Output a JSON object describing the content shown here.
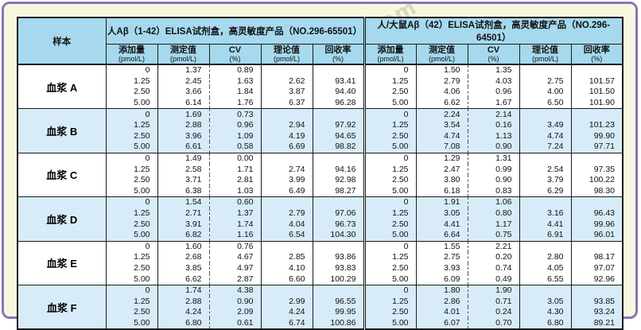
{
  "watermark": "chem17.com",
  "colors": {
    "frame_purple": "#8478B8",
    "page_cream": "#FAF7E1",
    "header_blue": "#A6D9EE",
    "shaded_row_blue": "#D7ECF8",
    "grid_black": "#1b1b1b"
  },
  "table": {
    "sample_header": "样本",
    "groups": [
      {
        "title": "人Aβ（1-42）ELISA试剂盒，高灵敏度产品（NO.296-65501）"
      },
      {
        "title": "人/大鼠Aβ（42）ELISA试剂盒，高灵敏度产品（NO.296-64501）"
      }
    ],
    "sub_headers": [
      {
        "label": "添加量",
        "unit": "(pmol/L)"
      },
      {
        "label": "测定值",
        "unit": "(pmol/L)"
      },
      {
        "label": "CV",
        "unit": "(%)"
      },
      {
        "label": "理论值",
        "unit": "(pmol/L)"
      },
      {
        "label": "回收率",
        "unit": "(%)"
      }
    ],
    "sections": [
      {
        "sample": "血浆 A",
        "shaded": false,
        "rows": [
          {
            "left": [
              "0",
              "1.37",
              "0.89",
              "",
              ""
            ],
            "right": [
              "0",
              "1.50",
              "1.35",
              "",
              ""
            ]
          },
          {
            "left": [
              "1.25",
              "2.45",
              "1.63",
              "2.62",
              "93.41"
            ],
            "right": [
              "1.25",
              "2.79",
              "4.03",
              "2.75",
              "101.57"
            ]
          },
          {
            "left": [
              "2.50",
              "3.66",
              "1.84",
              "3.87",
              "94.40"
            ],
            "right": [
              "2.50",
              "4.06",
              "0.96",
              "4.00",
              "101.50"
            ]
          },
          {
            "left": [
              "5.00",
              "6.14",
              "1.76",
              "6.37",
              "96.28"
            ],
            "right": [
              "5.00",
              "6.62",
              "1.67",
              "6.50",
              "101.90"
            ]
          }
        ]
      },
      {
        "sample": "血浆 B",
        "shaded": true,
        "rows": [
          {
            "left": [
              "0",
              "1.69",
              "0.73",
              "",
              ""
            ],
            "right": [
              "0",
              "2.24",
              "2.14",
              "",
              ""
            ]
          },
          {
            "left": [
              "1.25",
              "2.88",
              "0.96",
              "2.94",
              "97.92"
            ],
            "right": [
              "1.25",
              "3.54",
              "0.16",
              "3.49",
              "101.23"
            ]
          },
          {
            "left": [
              "2.50",
              "3.96",
              "1.09",
              "4.19",
              "94.65"
            ],
            "right": [
              "2.50",
              "4.74",
              "1.13",
              "4.74",
              "99.90"
            ]
          },
          {
            "left": [
              "5.00",
              "6.61",
              "0.58",
              "6.69",
              "98.82"
            ],
            "right": [
              "5.00",
              "7.08",
              "0.90",
              "7.24",
              "97.71"
            ]
          }
        ]
      },
      {
        "sample": "血浆 C",
        "shaded": false,
        "rows": [
          {
            "left": [
              "0",
              "1.49",
              "0.00",
              "",
              ""
            ],
            "right": [
              "0",
              "1.29",
              "1.31",
              "",
              ""
            ]
          },
          {
            "left": [
              "1.25",
              "2.58",
              "1.71",
              "2.74",
              "94.16"
            ],
            "right": [
              "1.25",
              "2.47",
              "0.99",
              "2.54",
              "97.35"
            ]
          },
          {
            "left": [
              "2.50",
              "3.71",
              "2.81",
              "3.99",
              "92.98"
            ],
            "right": [
              "2.50",
              "3.80",
              "0.90",
              "3.79",
              "100.22"
            ]
          },
          {
            "left": [
              "5.00",
              "6.38",
              "1.03",
              "6.49",
              "98.27"
            ],
            "right": [
              "5.00",
              "6.18",
              "0.83",
              "6.29",
              "98.30"
            ]
          }
        ]
      },
      {
        "sample": "血浆 D",
        "shaded": true,
        "rows": [
          {
            "left": [
              "0",
              "1.54",
              "0.60",
              "",
              ""
            ],
            "right": [
              "0",
              "1.91",
              "1.06",
              "",
              ""
            ]
          },
          {
            "left": [
              "1.25",
              "2.71",
              "1.37",
              "2.79",
              "97.06"
            ],
            "right": [
              "1.25",
              "3.05",
              "0.80",
              "3.16",
              "96.43"
            ]
          },
          {
            "left": [
              "2.50",
              "3.91",
              "1.74",
              "4.04",
              "96.73"
            ],
            "right": [
              "2.50",
              "4.41",
              "1.17",
              "4.41",
              "99.96"
            ]
          },
          {
            "left": [
              "5.00",
              "6.82",
              "1.16",
              "6.54",
              "104.30"
            ],
            "right": [
              "5.00",
              "6.64",
              "0.75",
              "6.91",
              "96.01"
            ]
          }
        ]
      },
      {
        "sample": "血浆 E",
        "shaded": false,
        "rows": [
          {
            "left": [
              "0",
              "1.60",
              "0.76",
              "",
              ""
            ],
            "right": [
              "0",
              "1.55",
              "2.21",
              "",
              ""
            ]
          },
          {
            "left": [
              "1.25",
              "2.68",
              "4.67",
              "2.85",
              "93.86"
            ],
            "right": [
              "1.25",
              "2.75",
              "0.20",
              "2.80",
              "98.17"
            ]
          },
          {
            "left": [
              "2.50",
              "3.85",
              "4.97",
              "4.10",
              "93.83"
            ],
            "right": [
              "2.50",
              "3.93",
              "0.74",
              "4.05",
              "97.07"
            ]
          },
          {
            "left": [
              "5.00",
              "6.62",
              "2.87",
              "6.60",
              "100.29"
            ],
            "right": [
              "5.00",
              "6.09",
              "0.49",
              "6.55",
              "92.96"
            ]
          }
        ]
      },
      {
        "sample": "血浆 F",
        "shaded": true,
        "rows": [
          {
            "left": [
              "0",
              "1.74",
              "4.38",
              "",
              ""
            ],
            "right": [
              "0",
              "1.80",
              "1.90",
              "",
              ""
            ]
          },
          {
            "left": [
              "1.25",
              "2.88",
              "0.90",
              "2.99",
              "96.55"
            ],
            "right": [
              "1.25",
              "2.86",
              "0.71",
              "3.05",
              "93.85"
            ]
          },
          {
            "left": [
              "2.50",
              "4.24",
              "2.09",
              "4.24",
              "99.95"
            ],
            "right": [
              "2.50",
              "4.01",
              "0.24",
              "4.30",
              "93.24"
            ]
          },
          {
            "left": [
              "5.00",
              "6.80",
              "0.61",
              "6.74",
              "100.86"
            ],
            "right": [
              "5.00",
              "6.07",
              "0.70",
              "6.80",
              "89.21"
            ]
          }
        ]
      }
    ]
  }
}
